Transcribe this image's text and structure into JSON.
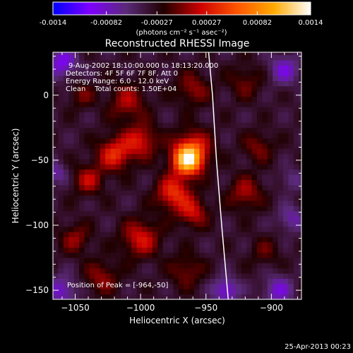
{
  "chart_data": {
    "type": "heatmap",
    "title": "Reconstructed RHESSI Image",
    "xlabel": "Heliocentric X (arcsec)",
    "ylabel": "Heliocentric Y (arcsec)",
    "xlim": [
      -1067,
      -877
    ],
    "ylim": [
      -157,
      33
    ],
    "xticks": [
      -1050,
      -1000,
      -950,
      -900
    ],
    "yticks": [
      -150,
      -100,
      -50,
      0
    ],
    "colorbar": {
      "range": [
        -0.0014,
        0.0014
      ],
      "ticks": [
        -0.0014,
        -0.00082,
        -0.00027,
        0.00027,
        0.00082,
        0.0014
      ],
      "tick_labels": [
        "-0.0014",
        "-0.00082",
        "-0.00027",
        "0.00027",
        "0.00082",
        "0.0014"
      ],
      "units": "(photons cm⁻² s⁻¹ asec⁻²)",
      "colors": [
        "#0000ff",
        "#7f00ff",
        "#5a2a78",
        "#200000",
        "#cc0000",
        "#ff5500",
        "#ffaa00",
        "#ffffff"
      ]
    },
    "annotations": [
      "9-Aug-2002 18:10:00.000 to 18:13:20.000",
      "Detectors: 4F 5F 6F 7F 8F, Att 0",
      "Energy Range: 6.0 - 12.0 keV",
      "Clean    Total counts: 1.50E+04"
    ],
    "peak_label": "Position of Peak = [-964,-50]",
    "peak": [
      -964,
      -50
    ],
    "limb_curve": [
      [
        -948,
        33
      ],
      [
        -945,
        0
      ],
      [
        -942,
        -50
      ],
      [
        -938,
        -100
      ],
      [
        -933,
        -157
      ]
    ],
    "sources": [
      {
        "x": -964,
        "y": -50,
        "sigma": 8,
        "value": 0.0014
      },
      {
        "x": -960,
        "y": -40,
        "sigma": 10,
        "value": 0.0006
      },
      {
        "x": -975,
        "y": -75,
        "sigma": 9,
        "value": 0.00075
      },
      {
        "x": -1020,
        "y": -45,
        "sigma": 9,
        "value": 0.0007
      },
      {
        "x": -1000,
        "y": -35,
        "sigma": 9,
        "value": 0.0006
      },
      {
        "x": -1040,
        "y": -65,
        "sigma": 8,
        "value": 0.0005
      },
      {
        "x": -1010,
        "y": -5,
        "sigma": 10,
        "value": 0.00045
      },
      {
        "x": -1045,
        "y": 0,
        "sigma": 7,
        "value": 0.0003
      },
      {
        "x": -1000,
        "y": -110,
        "sigma": 10,
        "value": 0.0006
      },
      {
        "x": -960,
        "y": -90,
        "sigma": 8,
        "value": 0.00055
      },
      {
        "x": -960,
        "y": 5,
        "sigma": 9,
        "value": 0.0004
      },
      {
        "x": -920,
        "y": -75,
        "sigma": 9,
        "value": 0.00045
      },
      {
        "x": -910,
        "y": -40,
        "sigma": 8,
        "value": 0.00035
      },
      {
        "x": -920,
        "y": 10,
        "sigma": 9,
        "value": 0.0003
      },
      {
        "x": -1050,
        "y": -110,
        "sigma": 8,
        "value": 0.0004
      },
      {
        "x": -1030,
        "y": -140,
        "sigma": 9,
        "value": 0.0004
      },
      {
        "x": -965,
        "y": -135,
        "sigma": 9,
        "value": 0.00035
      },
      {
        "x": -905,
        "y": -120,
        "sigma": 8,
        "value": 0.00025
      },
      {
        "x": -1060,
        "y": 25,
        "sigma": 8,
        "value": -0.0006
      },
      {
        "x": -890,
        "y": 20,
        "sigma": 8,
        "value": -0.0005
      },
      {
        "x": -1060,
        "y": -150,
        "sigma": 8,
        "value": -0.0005
      },
      {
        "x": -895,
        "y": -150,
        "sigma": 8,
        "value": -0.0005
      },
      {
        "x": -935,
        "y": -150,
        "sigma": 7,
        "value": -0.0006
      },
      {
        "x": -885,
        "y": -95,
        "sigma": 7,
        "value": -0.0004
      },
      {
        "x": -885,
        "y": -65,
        "sigma": 6,
        "value": -0.0003
      },
      {
        "x": -1065,
        "y": -60,
        "sigma": 6,
        "value": -0.0004
      }
    ]
  },
  "timestamp": "25-Apr-2013 00:23"
}
